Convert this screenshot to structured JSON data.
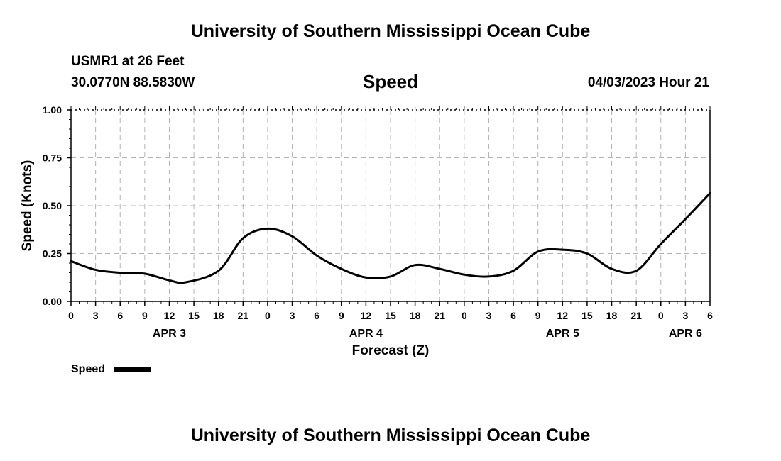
{
  "header": {
    "title": "University of Southern Mississippi Ocean Cube",
    "station": "USMR1 at 26 Feet",
    "coords": "30.0770N  88.5830W",
    "variable": "Speed",
    "datetime": "04/03/2023 Hour 21",
    "footer_title": "University of Southern Mississippi Ocean Cube"
  },
  "chart_data": {
    "type": "line",
    "xlabel": "Forecast (Z)",
    "ylabel": "Speed (Knots)",
    "ylim": [
      0,
      1
    ],
    "yticks": [
      "0.00",
      "0.25",
      "0.50",
      "0.75",
      "1.00"
    ],
    "xlim": [
      0,
      78
    ],
    "xtick_labels": [
      "0",
      "3",
      "6",
      "9",
      "12",
      "15",
      "18",
      "21",
      "0",
      "3",
      "6",
      "9",
      "12",
      "15",
      "18",
      "21",
      "0",
      "3",
      "6",
      "9",
      "12",
      "15",
      "18",
      "21",
      "0",
      "3",
      "6"
    ],
    "day_labels": [
      {
        "label": "APR 3",
        "hour": 12
      },
      {
        "label": "APR 4",
        "hour": 36
      },
      {
        "label": "APR 5",
        "hour": 60
      },
      {
        "label": "APR 6",
        "hour": 75
      }
    ],
    "grid": true,
    "legend": "bottom-left",
    "series": [
      {
        "name": "Speed",
        "color": "#000000",
        "x": [
          0,
          3,
          6,
          9,
          12,
          14,
          18,
          21,
          24,
          27,
          30,
          33,
          36,
          39,
          42,
          45,
          48,
          51,
          54,
          57,
          60,
          63,
          66,
          69,
          72,
          75,
          78
        ],
        "y": [
          0.21,
          0.165,
          0.15,
          0.145,
          0.11,
          0.1,
          0.16,
          0.33,
          0.38,
          0.34,
          0.24,
          0.17,
          0.125,
          0.13,
          0.19,
          0.17,
          0.14,
          0.13,
          0.16,
          0.26,
          0.27,
          0.25,
          0.17,
          0.16,
          0.3,
          0.43,
          0.565
        ]
      }
    ]
  }
}
